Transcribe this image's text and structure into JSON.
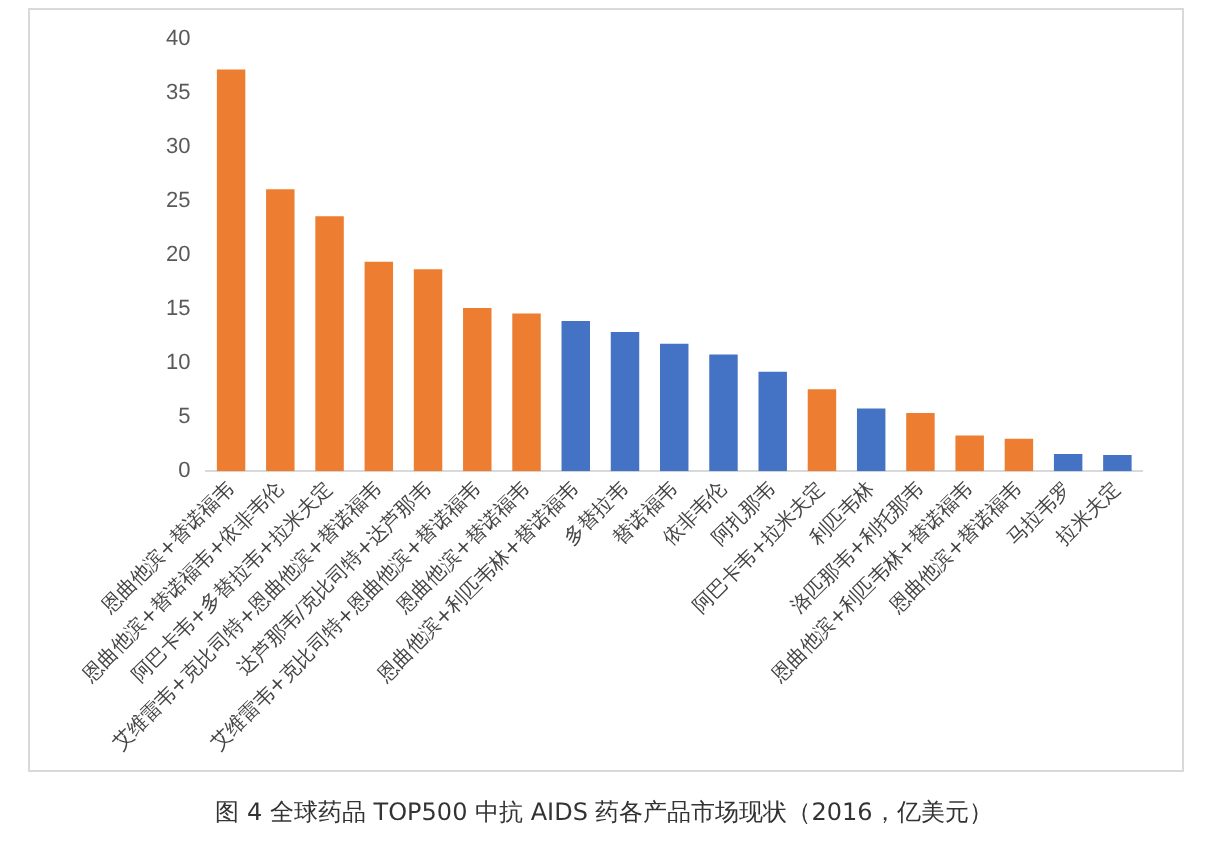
{
  "chart_data": {
    "type": "bar",
    "categories": [
      "恩曲他滨+替诺福韦",
      "恩曲他滨+替诺福韦+依非韦伦",
      "阿巴卡韦+多替拉韦+拉米夫定",
      "艾维雷韦+克比司特+恩曲他滨+替诺福韦",
      "达芦那韦/克比司特+达芦那韦",
      "艾维雷韦+克比司特+恩曲他滨+替诺福韦",
      "恩曲他滨+替诺福韦",
      "恩曲他滨+利匹韦林+替诺福韦",
      "多替拉韦",
      "替诺福韦",
      "依非韦伦",
      "阿扎那韦",
      "阿巴卡韦+拉米夫定",
      "利匹韦林",
      "洛匹那韦+利托那韦",
      "恩曲他滨+利匹韦林+替诺福韦",
      "恩曲他滨+替诺福韦",
      "马拉韦罗",
      "拉米夫定"
    ],
    "values": [
      37.2,
      26.1,
      23.6,
      19.4,
      18.7,
      15.1,
      14.6,
      13.9,
      12.9,
      11.8,
      10.8,
      9.2,
      7.6,
      5.8,
      5.4,
      3.3,
      3.0,
      1.6,
      1.5
    ],
    "colors": [
      "#ed7d31",
      "#ed7d31",
      "#ed7d31",
      "#ed7d31",
      "#ed7d31",
      "#ed7d31",
      "#ed7d31",
      "#4472c4",
      "#4472c4",
      "#4472c4",
      "#4472c4",
      "#4472c4",
      "#ed7d31",
      "#4472c4",
      "#ed7d31",
      "#ed7d31",
      "#ed7d31",
      "#4472c4",
      "#4472c4"
    ],
    "ylim": [
      0,
      40
    ],
    "yticks": [
      0,
      5,
      10,
      15,
      20,
      25,
      30,
      35,
      40
    ],
    "grid": false,
    "legend": false,
    "annotations": [
      "图 4  全球药品 TOP500 中抗 AIDS 药各产品市场现状（2016，亿美元）"
    ]
  }
}
